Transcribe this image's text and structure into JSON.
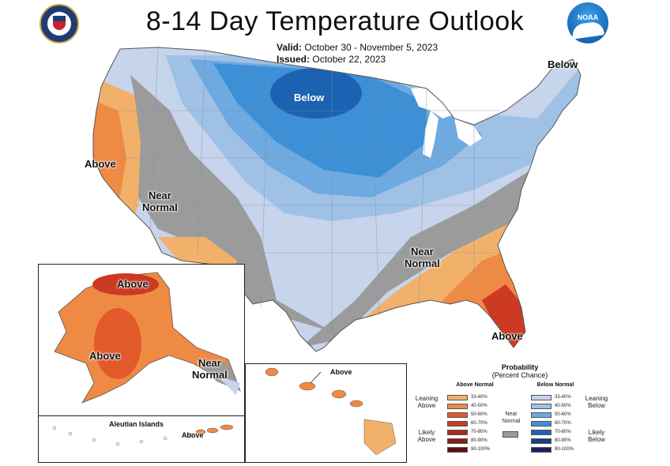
{
  "title": "8-14 Day Temperature Outlook",
  "valid_label": "Valid:",
  "valid_dates": "October 30 - November 5, 2023",
  "issued_label": "Issued:",
  "issued_date": "October 22, 2023",
  "logos": {
    "left": "doc-seal-icon",
    "right": "noaa-logo-icon",
    "noaa_text": "NOAA"
  },
  "map_labels": {
    "below_north": "Below",
    "below_northeast": "Below",
    "above_west": "Above",
    "near_normal_west": "Near\nNormal",
    "near_normal_southeast": "Near\nNormal",
    "above_florida": "Above",
    "alaska_above_north": "Above",
    "alaska_above_west": "Above",
    "alaska_near_normal": "Near\nNormal",
    "hawaii_above": "Above",
    "aleutian_title": "Aleutian Islands",
    "aleutian_above": "Above"
  },
  "legend": {
    "title": "Probability",
    "subtitle": "(Percent Chance)",
    "above_header": "Above Normal",
    "below_header": "Below Normal",
    "near_label": "Near\nNormal",
    "leaning_above": "Leaning\nAbove",
    "likely_above": "Likely\nAbove",
    "leaning_below": "Leaning\nBelow",
    "likely_below": "Likely\nBelow",
    "ranges": [
      "33-40%",
      "40-50%",
      "50-60%",
      "60-70%",
      "70-80%",
      "80-90%",
      "90-100%"
    ],
    "above_colors": [
      "#f2b16a",
      "#ef8a45",
      "#e35a2a",
      "#cc3a24",
      "#ad2a1f",
      "#8c1c17",
      "#5e0f0f"
    ],
    "below_colors": [
      "#c6d4ec",
      "#9fc1e6",
      "#6ea9e0",
      "#3d8fd6",
      "#1c62b3",
      "#173f8a",
      "#1c1f5c"
    ],
    "near_color": "#9b9b9b"
  }
}
